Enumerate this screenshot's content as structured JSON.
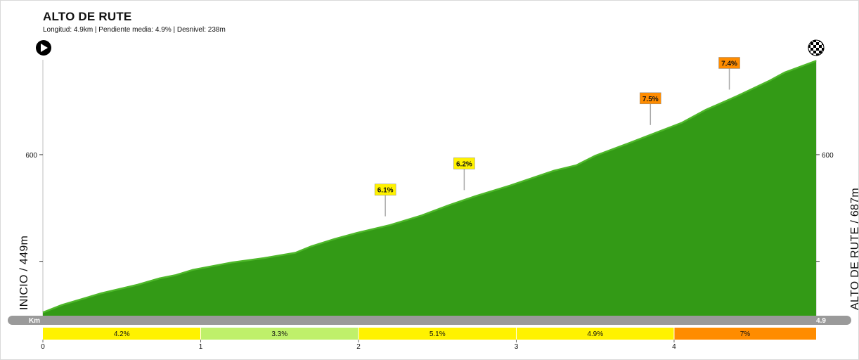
{
  "header": {
    "title": "ALTO DE RUTE",
    "subtitle": "Longitud: 4.9km | Pendiente media: 4.9% | Desnivel: 238m"
  },
  "labels": {
    "start": "INICIO / 449m",
    "finish": "ALTO DE RUTE / 687m",
    "km_unit": "Km",
    "km_end": "4.9"
  },
  "icons": {
    "start": "play-icon",
    "finish": "checkered-flag-icon"
  },
  "colors": {
    "profile_fill": "#339a16",
    "profile_edge": "#4eb82a",
    "axis": "#9a9a9a",
    "yellow": "#fff200",
    "light_green": "#bff06a",
    "orange": "#ff8c00"
  },
  "chart_data": {
    "type": "area",
    "xlabel": "Km",
    "xlim": [
      0,
      4.9
    ],
    "x_ticks": [
      0,
      1,
      2,
      3,
      4
    ],
    "ylim": [
      449,
      687
    ],
    "y_ticks": [
      {
        "value": 600,
        "label": "600"
      },
      {
        "value": 500,
        "label": ""
      }
    ],
    "profile": {
      "x": [
        0,
        0.12,
        0.37,
        0.6,
        0.74,
        0.84,
        0.95,
        1.2,
        1.4,
        1.6,
        1.7,
        1.85,
        2.0,
        2.2,
        2.4,
        2.58,
        2.74,
        2.96,
        3.1,
        3.24,
        3.38,
        3.5,
        3.7,
        3.84,
        4.05,
        4.2,
        4.4,
        4.6,
        4.7,
        4.9
      ],
      "y": [
        452,
        459,
        470,
        478,
        484,
        487,
        492,
        499,
        503,
        508,
        514,
        521,
        527,
        534,
        543,
        553,
        561,
        571,
        578,
        585,
        590,
        599,
        610,
        618,
        630,
        642,
        655,
        669,
        677,
        688
      ]
    },
    "climb_markers": [
      {
        "x": 2.17,
        "label": "6.1%",
        "color": "#fff200"
      },
      {
        "x": 2.67,
        "label": "6.2%",
        "color": "#fff200"
      },
      {
        "x": 3.85,
        "label": "7.5%",
        "color": "#ff8c00"
      },
      {
        "x": 4.35,
        "label": "7.4%",
        "color": "#ff8c00"
      }
    ],
    "segments": [
      {
        "from": 0,
        "to": 1,
        "label": "4.2%",
        "color": "#fff200"
      },
      {
        "from": 1,
        "to": 2,
        "label": "3.3%",
        "color": "#bff06a"
      },
      {
        "from": 2,
        "to": 3,
        "label": "5.1%",
        "color": "#fff200"
      },
      {
        "from": 3,
        "to": 4,
        "label": "4.9%",
        "color": "#fff200"
      },
      {
        "from": 4,
        "to": 4.9,
        "label": "7%",
        "color": "#ff8c00"
      }
    ]
  }
}
